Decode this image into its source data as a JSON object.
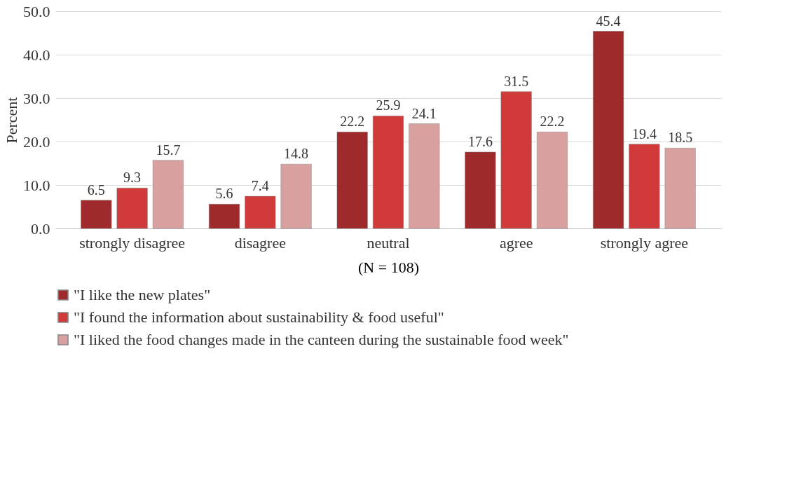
{
  "chart_data": {
    "type": "bar",
    "categories": [
      "strongly disagree",
      "disagree",
      "neutral",
      "agree",
      "strongly agree"
    ],
    "series": [
      {
        "name": "\"I like the new plates\"",
        "color": "#9e2a2b",
        "values": [
          6.5,
          5.6,
          22.2,
          17.6,
          45.4
        ]
      },
      {
        "name": "\"I found the information about sustainability & food useful\"",
        "color": "#d03a3a",
        "values": [
          9.3,
          7.4,
          25.9,
          31.5,
          19.4
        ]
      },
      {
        "name": "\"I liked the food changes made in the canteen during the sustainable food week\"",
        "color": "#d9a0a0",
        "values": [
          15.7,
          14.8,
          24.1,
          22.2,
          18.5
        ]
      }
    ],
    "xlabel": "(N = 108)",
    "ylabel": "Percent",
    "ylim": [
      0,
      50
    ],
    "yticks": [
      {
        "value": 0,
        "label": "0.0"
      },
      {
        "value": 10,
        "label": "10.0"
      },
      {
        "value": 20,
        "label": "20.0"
      },
      {
        "value": 30,
        "label": "30.0"
      },
      {
        "value": 40,
        "label": "40.0"
      },
      {
        "value": 50,
        "label": "50.0"
      }
    ],
    "grid": "y",
    "legend": "bottom",
    "data_labels": true
  }
}
